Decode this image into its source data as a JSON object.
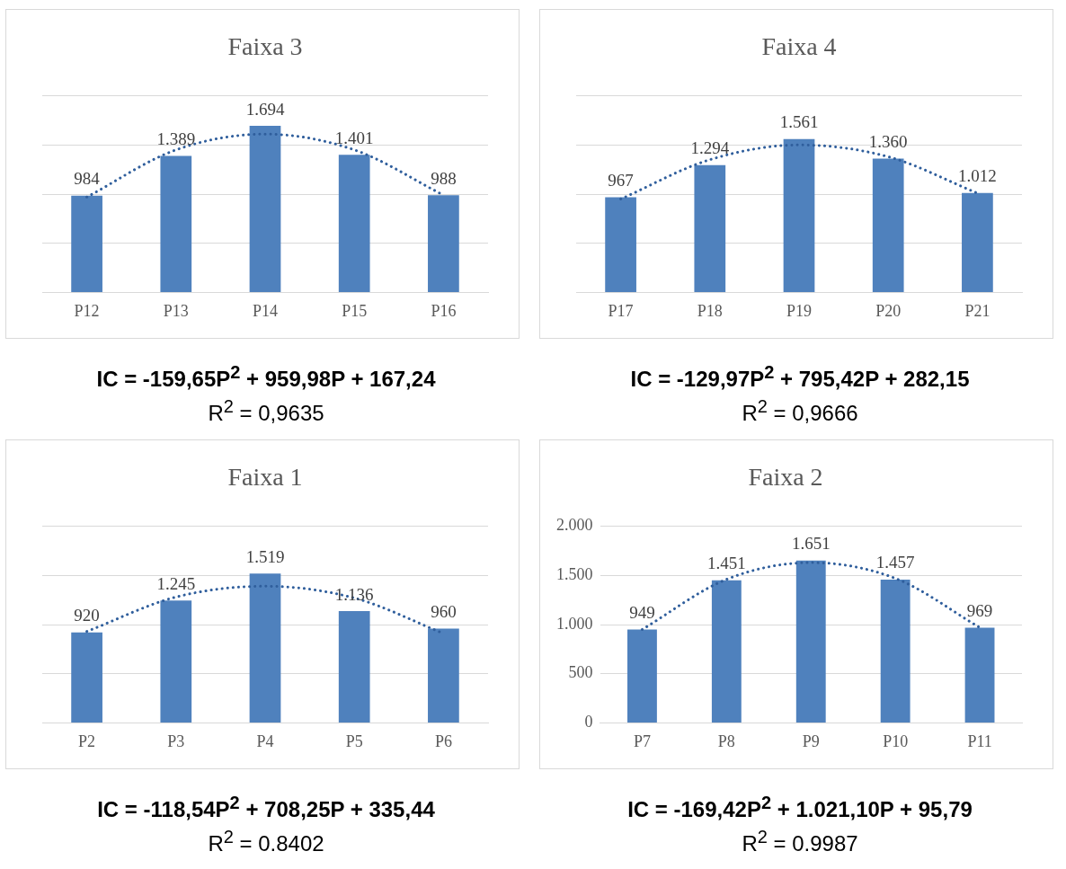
{
  "chart_data": [
    {
      "type": "bar",
      "title": "Faixa 3",
      "categories": [
        "P12",
        "P13",
        "P14",
        "P15",
        "P16"
      ],
      "series": [
        {
          "color": "#4f81bd",
          "values": [
            984,
            1389,
            1694,
            1401,
            988
          ],
          "value_labels": [
            "984",
            "1.389",
            "1.694",
            "1.401",
            "988"
          ]
        },
        {
          "type": "line",
          "color": "#2f5e9c",
          "marker": "none",
          "line_style": "dotted",
          "values": [
            970,
            1450,
            1610,
            1450,
            990
          ]
        }
      ],
      "ylim": [
        0,
        2000
      ],
      "yticks": [
        0,
        500,
        1000,
        1500,
        2000
      ],
      "tick_labels": "x",
      "grid": "y",
      "legend": false,
      "annotations": [
        "IC = -159,65P$^{2}$ + 959,98P + 167,24",
        "R$^{2}$ = 0,9635"
      ]
    },
    {
      "type": "bar",
      "title": "Faixa 4",
      "categories": [
        "P17",
        "P18",
        "P19",
        "P20",
        "P21"
      ],
      "series": [
        {
          "color": "#4f81bd",
          "values": [
            967,
            1294,
            1561,
            1360,
            1012
          ],
          "value_labels": [
            "967",
            "1.294",
            "1.561",
            "1.360",
            "1.012"
          ]
        },
        {
          "type": "line",
          "color": "#2f5e9c",
          "marker": "none",
          "line_style": "dotted",
          "values": [
            950,
            1350,
            1500,
            1380,
            1010
          ]
        }
      ],
      "ylim": [
        0,
        2000
      ],
      "yticks": [
        0,
        500,
        1000,
        1500,
        2000
      ],
      "tick_labels": "x",
      "grid": "y",
      "legend": false,
      "annotations": [
        "IC = -129,97P$^{2}$ + 795,42P + 282,15",
        "R$^{2}$ = 0,9666"
      ]
    },
    {
      "type": "bar",
      "title": "Faixa 1",
      "categories": [
        "P2",
        "P3",
        "P4",
        "P5",
        "P6"
      ],
      "series": [
        {
          "color": "#4f81bd",
          "values": [
            920,
            1245,
            1519,
            1136,
            960
          ],
          "value_labels": [
            "920",
            "1.245",
            "1.519",
            "1.136",
            "960"
          ]
        },
        {
          "type": "line",
          "color": "#2f5e9c",
          "marker": "none",
          "line_style": "dotted",
          "values": [
            930,
            1280,
            1390,
            1270,
            910
          ]
        }
      ],
      "ylim": [
        0,
        2000
      ],
      "yticks": [
        0,
        500,
        1000,
        1500,
        2000
      ],
      "tick_labels": "x",
      "grid": "y",
      "legend": false,
      "annotations": [
        "IC = -118,54P$^{2}$ + 708,25P + 335,44",
        "R$^{2}$ = 0.8402"
      ]
    },
    {
      "type": "bar",
      "title": "Faixa 2",
      "categories": [
        "P7",
        "P8",
        "P9",
        "P10",
        "P11"
      ],
      "series": [
        {
          "color": "#4f81bd",
          "values": [
            949,
            1451,
            1651,
            1457,
            969
          ],
          "value_labels": [
            "949",
            "1.451",
            "1.651",
            "1.457",
            "969"
          ]
        },
        {
          "type": "line",
          "color": "#2f5e9c",
          "marker": "none",
          "line_style": "dotted",
          "values": [
            950,
            1460,
            1630,
            1470,
            970
          ]
        }
      ],
      "ylim": [
        0,
        2000
      ],
      "yticks": [
        {
          "value": 0,
          "label": "0"
        },
        {
          "value": 500,
          "label": "500"
        },
        {
          "value": 1000,
          "label": "1.000"
        },
        {
          "value": 1500,
          "label": "1.500"
        },
        {
          "value": 2000,
          "label": "2.000"
        }
      ],
      "grid": "y",
      "legend": false,
      "annotations": [
        "IC = -169,42P$^{2}$ + 1.021,10P + 95,79",
        "R$^{2}$ = 0.9987"
      ]
    }
  ]
}
